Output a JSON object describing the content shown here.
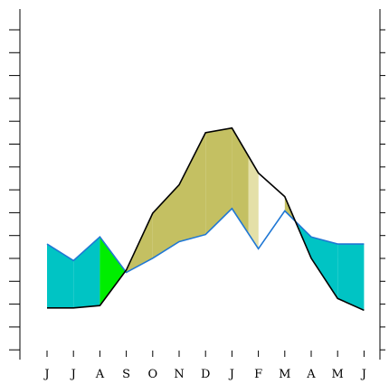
{
  "chart_data": {
    "type": "area",
    "title": "",
    "xlabel": "",
    "ylabel": "",
    "categories": [
      "J",
      "J",
      "A",
      "S",
      "O",
      "N",
      "D",
      "J",
      "F",
      "M",
      "A",
      "M",
      "J"
    ],
    "ylim": [
      0,
      14.5
    ],
    "grid": false,
    "series": [
      {
        "values": [
          1.8,
          1.8,
          1.9,
          3.4,
          5.8,
          7.0,
          9.2,
          9.4,
          7.5,
          6.5,
          3.9,
          2.2,
          1.7
        ]
      },
      {
        "values": [
          4.5,
          3.8,
          4.8,
          3.3,
          3.9,
          4.6,
          4.9,
          6.0,
          4.3,
          5.9,
          4.8,
          4.5,
          4.5
        ]
      }
    ],
    "colors": {
      "line_a": "#000000",
      "line_b": "#1f77d4",
      "fill_b_above": "#00c4c4",
      "fill_b_above_alt": "#00ee00",
      "fill_a_above": "#c4c062",
      "fill_a_above_alt": "#e4e0a8"
    }
  }
}
